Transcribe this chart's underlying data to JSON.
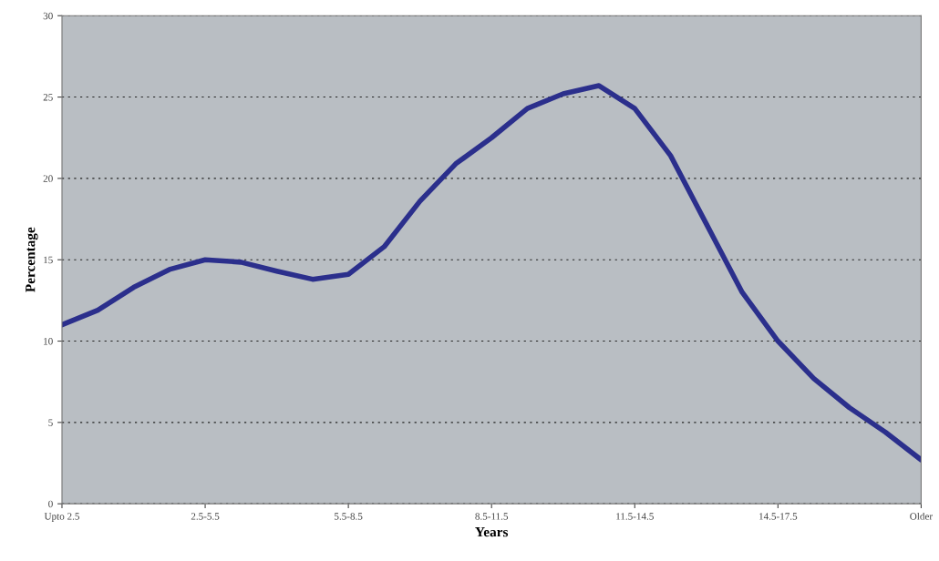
{
  "chart_data": {
    "type": "line",
    "xlabel": "Years",
    "ylabel": "Percentage",
    "categories": [
      "Upto 2.5",
      null,
      null,
      null,
      "2.5-5.5",
      null,
      null,
      null,
      "5.5-8.5",
      null,
      null,
      null,
      "8.5-11.5",
      null,
      null,
      null,
      "11.5-14.5",
      null,
      null,
      null,
      "14.5-17.5",
      null,
      null,
      null,
      "Older"
    ],
    "series": [
      {
        "color": "#2b2f8c",
        "values": [
          11.0,
          11.9,
          13.3,
          14.4,
          15.0,
          14.85,
          14.3,
          13.8,
          14.1,
          15.8,
          18.6,
          20.9,
          22.5,
          24.3,
          25.2,
          25.7,
          24.3,
          21.4,
          17.2,
          13.0,
          10.0,
          7.7,
          5.9,
          4.4,
          2.7
        ]
      }
    ],
    "ylim": [
      0,
      30
    ],
    "yticks": [
      0,
      5,
      10,
      15,
      20,
      25,
      30
    ],
    "grid": "y"
  }
}
